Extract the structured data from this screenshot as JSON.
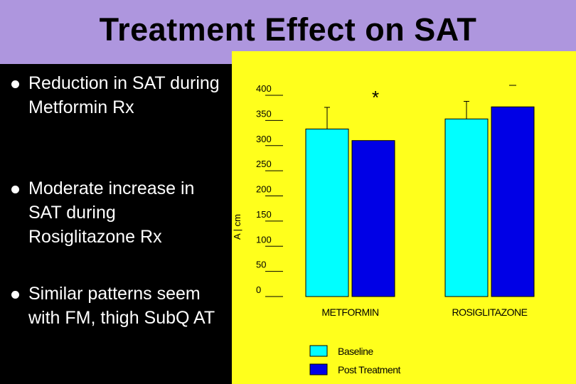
{
  "slide": {
    "title": "Treatment Effect on SAT",
    "bullets": [
      "Reduction in SAT during Metformin Rx",
      "Moderate increase in SAT during Rosiglitazone Rx",
      "Similar patterns seem with FM, thigh SubQ AT"
    ]
  },
  "colors": {
    "title_band": "#ae96de",
    "chart_background": "#ffff1c",
    "baseline": "#00ffff",
    "post_treatment": "#0000e6"
  },
  "chart_data": {
    "type": "bar",
    "categories": [
      "METFORMIN",
      "ROSIGLITAZONE"
    ],
    "series": [
      {
        "name": "Baseline",
        "values": [
          333,
          353
        ],
        "error_upper": [
          376,
          388
        ]
      },
      {
        "name": "Post Treatment",
        "values": [
          310,
          377
        ]
      }
    ],
    "ylim": [
      0,
      400
    ],
    "yticks": [
      0,
      50,
      100,
      150,
      200,
      250,
      300,
      350,
      400
    ],
    "ylabel_fragment": "A | cm",
    "annotations": [
      "*"
    ],
    "legend_position": "bottom",
    "grid": false
  }
}
